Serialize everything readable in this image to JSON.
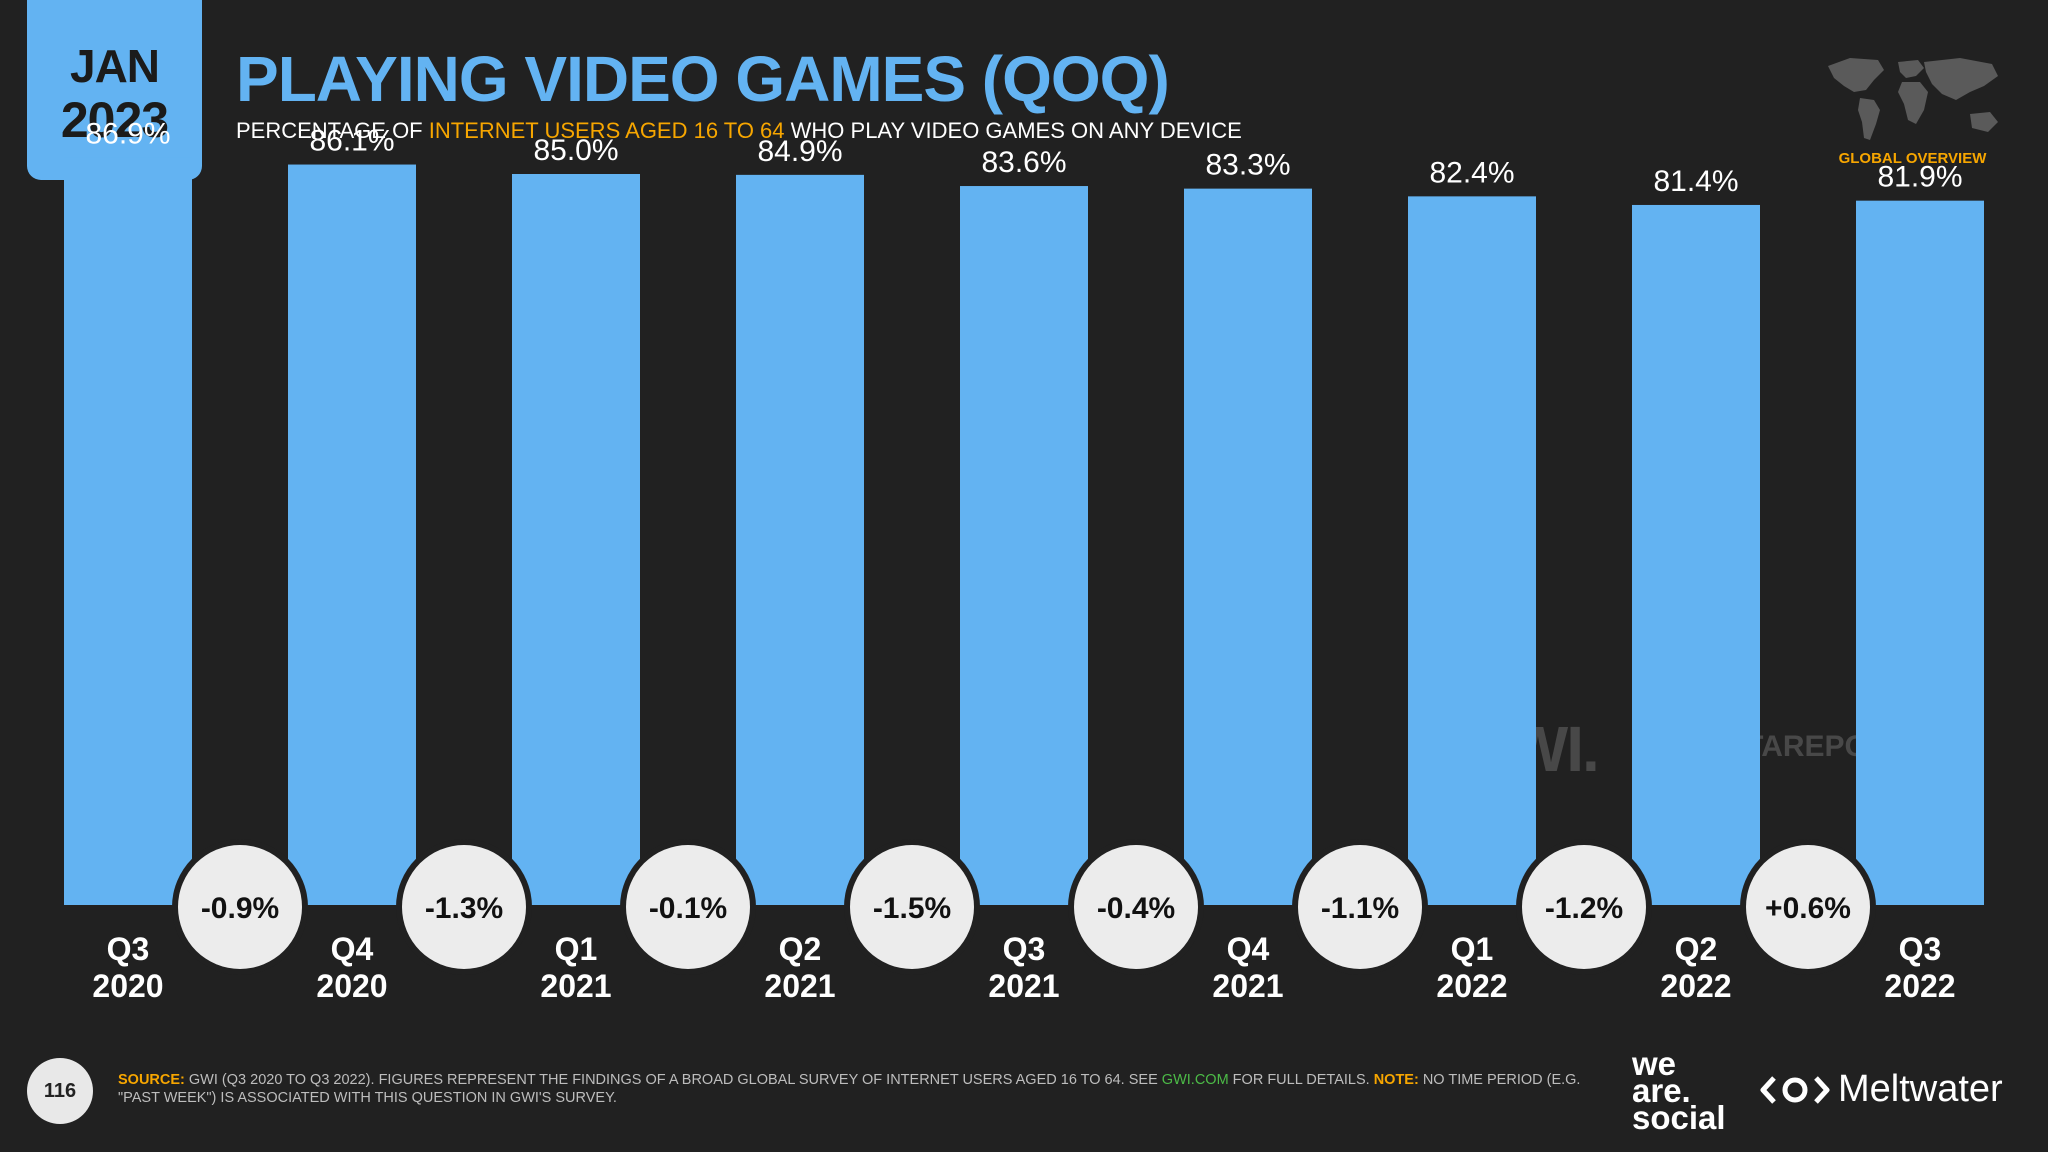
{
  "header": {
    "month": "JAN",
    "year": "2023",
    "title": "PLAYING VIDEO GAMES (QOQ)",
    "subtitle_pre": "PERCENTAGE OF ",
    "subtitle_highlight": "INTERNET USERS AGED 16 TO 64",
    "subtitle_post": " WHO PLAY VIDEO GAMES ON ANY DEVICE",
    "region_label": "GLOBAL OVERVIEW"
  },
  "chart_data": {
    "type": "bar",
    "title": "PLAYING VIDEO GAMES (QOQ)",
    "categories": [
      [
        "Q3",
        "2020"
      ],
      [
        "Q4",
        "2020"
      ],
      [
        "Q1",
        "2021"
      ],
      [
        "Q2",
        "2021"
      ],
      [
        "Q3",
        "2021"
      ],
      [
        "Q4",
        "2021"
      ],
      [
        "Q1",
        "2022"
      ],
      [
        "Q2",
        "2022"
      ],
      [
        "Q3",
        "2022"
      ]
    ],
    "values": [
      86.9,
      86.1,
      85.0,
      84.9,
      83.6,
      83.3,
      82.4,
      81.4,
      81.9
    ],
    "value_labels": [
      "86.9%",
      "86.1%",
      "85.0%",
      "84.9%",
      "83.6%",
      "83.3%",
      "82.4%",
      "81.4%",
      "81.9%"
    ],
    "changes": [
      "-0.9%",
      "-1.3%",
      "-0.1%",
      "-1.5%",
      "-0.4%",
      "-1.1%",
      "-1.2%",
      "+0.6%"
    ],
    "ylim": [
      0,
      100
    ],
    "xlabel": "",
    "ylabel": "",
    "colors": {
      "bar": "#63b3f2",
      "badge": "#ececec",
      "badge_text": "#111111"
    }
  },
  "watermark": {
    "gwi": "GWI.",
    "datareportal": "DATAREPORTAL"
  },
  "footer": {
    "page_number": "116",
    "source_label": "SOURCE:",
    "source_text_1": " GWI (Q3 2020 TO Q3 2022). FIGURES REPRESENT THE FINDINGS OF A BROAD GLOBAL SURVEY OF INTERNET USERS AGED 16 TO 64. SEE ",
    "source_link": "GWI.COM",
    "source_text_2": " FOR FULL DETAILS. ",
    "note_label": "NOTE:",
    "note_text": " NO TIME PERIOD (E.G. \"PAST WEEK\") IS ASSOCIATED WITH THIS QUESTION IN GWI'S SURVEY.",
    "brand_we": "we",
    "brand_are": "are.",
    "brand_social": "social",
    "brand_meltwater": "Meltwater"
  }
}
